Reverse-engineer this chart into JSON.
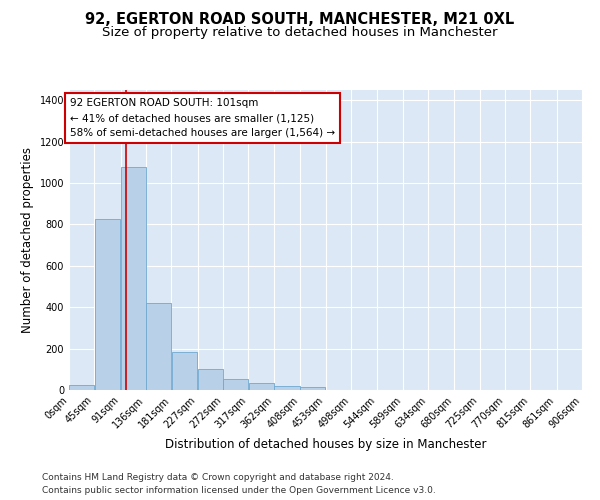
{
  "title1": "92, EGERTON ROAD SOUTH, MANCHESTER, M21 0XL",
  "title2": "Size of property relative to detached houses in Manchester",
  "xlabel": "Distribution of detached houses by size in Manchester",
  "ylabel": "Number of detached properties",
  "bin_labels": [
    "0sqm",
    "45sqm",
    "91sqm",
    "136sqm",
    "181sqm",
    "227sqm",
    "272sqm",
    "317sqm",
    "362sqm",
    "408sqm",
    "453sqm",
    "498sqm",
    "544sqm",
    "589sqm",
    "634sqm",
    "680sqm",
    "725sqm",
    "770sqm",
    "815sqm",
    "861sqm",
    "906sqm"
  ],
  "bar_values": [
    25,
    825,
    1080,
    420,
    182,
    102,
    55,
    33,
    20,
    15,
    0,
    0,
    0,
    0,
    0,
    0,
    0,
    0,
    0,
    0
  ],
  "bin_edges": [
    0,
    45,
    91,
    136,
    181,
    227,
    272,
    317,
    362,
    408,
    453,
    498,
    544,
    589,
    634,
    680,
    725,
    770,
    815,
    861,
    906
  ],
  "bar_color": "#b8d0e8",
  "bar_edgecolor": "#6fa8d0",
  "vline_x": 101,
  "vline_color": "#cc0000",
  "annotation_line1": "92 EGERTON ROAD SOUTH: 101sqm",
  "annotation_line2": "← 41% of detached houses are smaller (1,125)",
  "annotation_line3": "58% of semi-detached houses are larger (1,564) →",
  "box_edgecolor": "#cc0000",
  "ylim": [
    0,
    1450
  ],
  "yticks": [
    0,
    200,
    400,
    600,
    800,
    1000,
    1200,
    1400
  ],
  "footnote1": "Contains HM Land Registry data © Crown copyright and database right 2024.",
  "footnote2": "Contains public sector information licensed under the Open Government Licence v3.0.",
  "fig_bg_color": "#ffffff",
  "plot_bg_color": "#dce8f5",
  "grid_color": "#ffffff",
  "title_fontsize": 10.5,
  "subtitle_fontsize": 9.5,
  "axis_label_fontsize": 8.5,
  "tick_fontsize": 7,
  "footnote_fontsize": 6.5
}
